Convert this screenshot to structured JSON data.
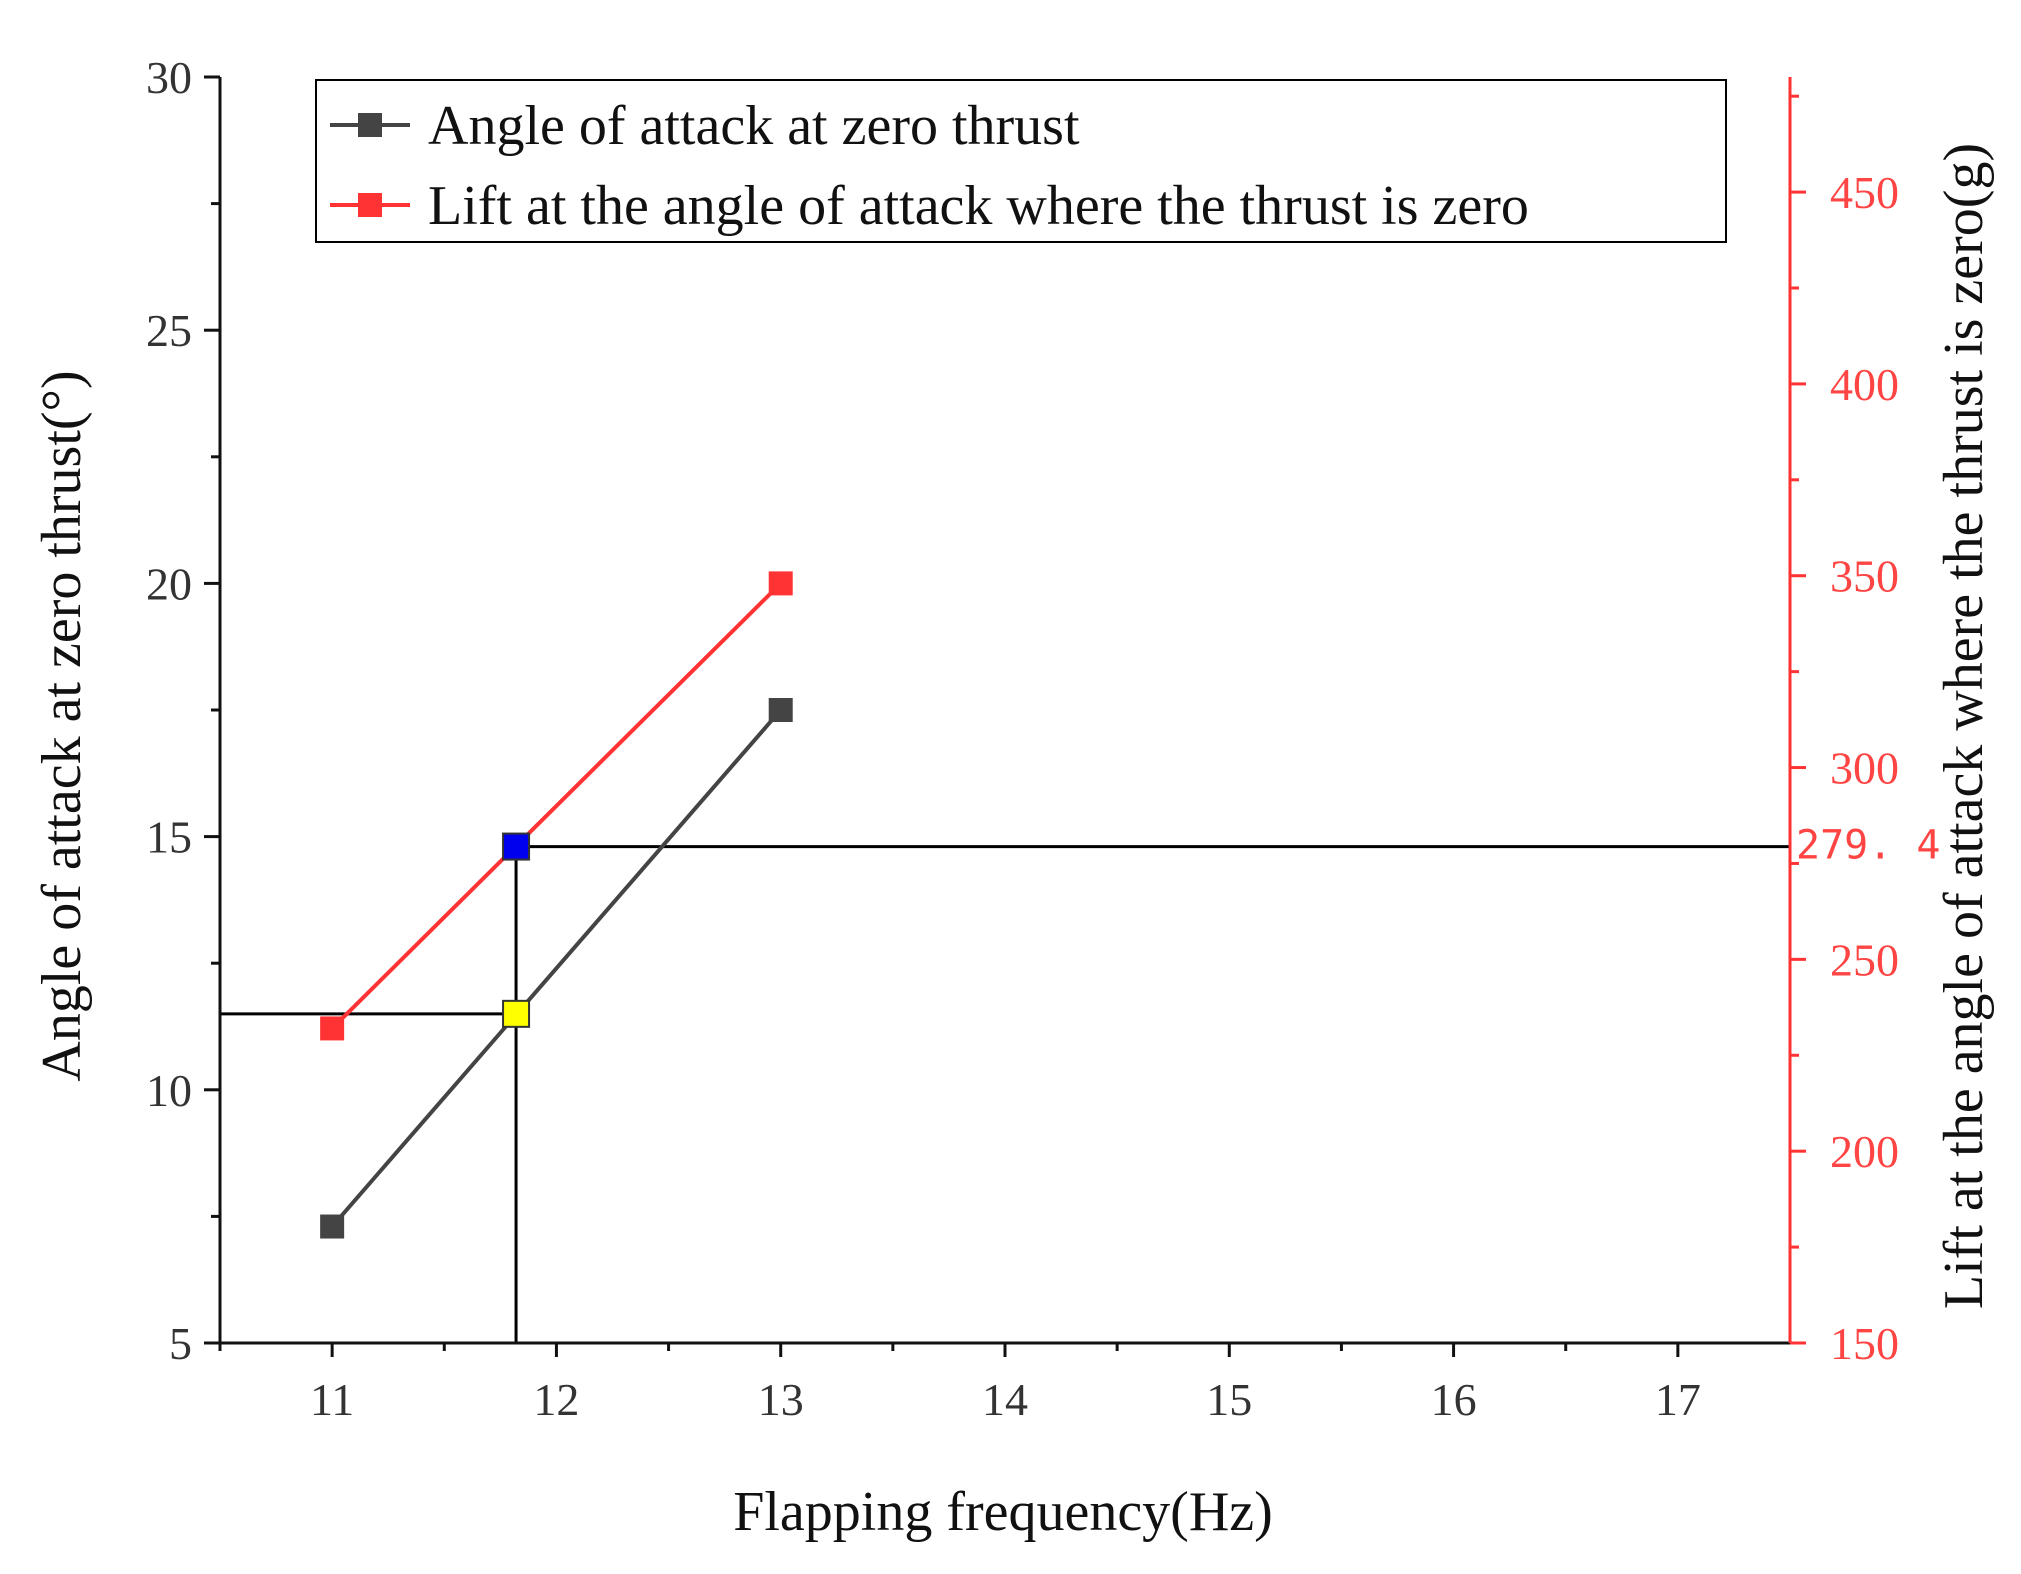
{
  "chart_data": {
    "type": "line",
    "xlabel": "Flapping frequency(Hz)",
    "ylabel_left": "Angle of attack at zero thrust(°)",
    "ylabel_right": "Lift at the angle of attack where the thrust is zero(g)",
    "xlim": [
      10.5,
      17.5
    ],
    "ylim_left": [
      5,
      30
    ],
    "ylim_right": [
      150,
      480
    ],
    "x_ticks": [
      "11",
      "12",
      "13",
      "14",
      "15",
      "16",
      "17"
    ],
    "y_left_ticks": [
      "5",
      "10",
      "15",
      "20",
      "25",
      "30"
    ],
    "y_right_ticks": [
      "150",
      "200",
      "250",
      "300",
      "350",
      "400",
      "450"
    ],
    "legend": {
      "position": "top"
    },
    "series": [
      {
        "name": "Angle of attack at zero thrust",
        "axis": "left",
        "color": "#444444",
        "marker": "square",
        "x": [
          11,
          13
        ],
        "y": [
          7.3,
          17.5
        ]
      },
      {
        "name": "Lift at the angle of attack where the thrust is zero",
        "axis": "right",
        "color": "#ff3333",
        "marker": "square",
        "x": [
          11,
          13
        ],
        "y": [
          232,
          348
        ]
      }
    ],
    "annotations": {
      "frequency": 11.82,
      "angle": 11.5,
      "lift": 279.4,
      "lift_label": "279. 4",
      "angle_marker_color": "#ffff00",
      "lift_marker_color": "#0000ee",
      "guide_color": "#000000"
    },
    "colors": {
      "left_axis": "#111111",
      "right_axis": "#ff3333",
      "right_tick_text": "#ff4444"
    }
  }
}
